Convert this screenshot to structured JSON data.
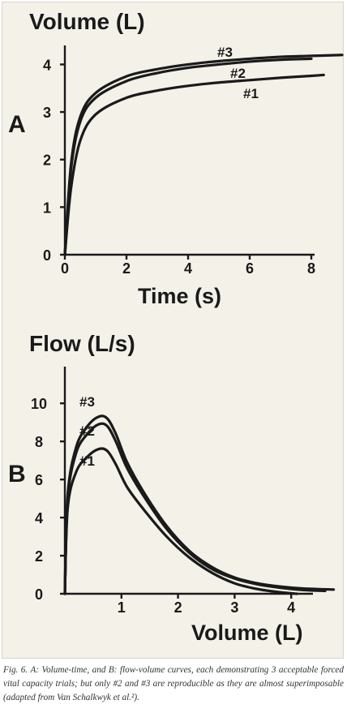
{
  "chart_data": [
    {
      "type": "line",
      "panel_label": "A",
      "ylabel": "Volume (L)",
      "xlabel": "Time (s)",
      "xlim": [
        0,
        9
      ],
      "ylim": [
        0,
        4.4
      ],
      "x_ticks": [
        0,
        2,
        4,
        6,
        8
      ],
      "y_ticks": [
        0,
        1,
        2,
        3,
        4
      ],
      "grid": false,
      "series": [
        {
          "name": "#1",
          "x": [
            0,
            0.2,
            0.5,
            1,
            2,
            3,
            4,
            5,
            6,
            7,
            8,
            8.4
          ],
          "y": [
            0,
            1.4,
            2.4,
            2.95,
            3.3,
            3.45,
            3.55,
            3.62,
            3.67,
            3.72,
            3.76,
            3.78
          ]
        },
        {
          "name": "#2",
          "x": [
            0,
            0.2,
            0.5,
            1,
            2,
            3,
            4,
            5,
            6,
            7,
            8
          ],
          "y": [
            0,
            1.8,
            2.8,
            3.3,
            3.65,
            3.82,
            3.93,
            4.0,
            4.06,
            4.1,
            4.12
          ]
        },
        {
          "name": "#3",
          "x": [
            0,
            0.2,
            0.5,
            1,
            2,
            3,
            4,
            5,
            6,
            7,
            8,
            9
          ],
          "y": [
            0,
            1.9,
            2.9,
            3.4,
            3.75,
            3.9,
            4.0,
            4.07,
            4.12,
            4.16,
            4.18,
            4.2
          ]
        }
      ]
    },
    {
      "type": "line",
      "panel_label": "B",
      "ylabel": "Flow (L/s)",
      "xlabel": "Volume (L)",
      "xlim": [
        0,
        4.8
      ],
      "ylim": [
        0,
        11.5
      ],
      "x_ticks": [
        1,
        2,
        3,
        4
      ],
      "y_ticks": [
        0,
        2,
        4,
        6,
        8,
        10
      ],
      "grid": false,
      "series": [
        {
          "name": "#1",
          "x": [
            0,
            0.05,
            0.2,
            0.4,
            0.6,
            0.75,
            0.9,
            1.1,
            1.4,
            1.8,
            2.2,
            2.6,
            3.0,
            3.4,
            3.8,
            4.1
          ],
          "y": [
            0,
            4.5,
            6.4,
            7.2,
            7.6,
            7.5,
            6.8,
            5.6,
            4.4,
            3.0,
            1.9,
            1.1,
            0.55,
            0.25,
            0.08,
            0
          ]
        },
        {
          "name": "#2",
          "x": [
            0,
            0.05,
            0.2,
            0.4,
            0.6,
            0.75,
            0.9,
            1.1,
            1.4,
            1.8,
            2.2,
            2.6,
            3.0,
            3.4,
            3.8,
            4.2,
            4.6
          ],
          "y": [
            0,
            5.0,
            7.4,
            8.4,
            8.9,
            8.8,
            8.0,
            6.6,
            5.1,
            3.4,
            2.15,
            1.3,
            0.8,
            0.5,
            0.32,
            0.2,
            0.15
          ]
        },
        {
          "name": "#3",
          "x": [
            0,
            0.05,
            0.2,
            0.4,
            0.6,
            0.75,
            0.9,
            1.1,
            1.4,
            1.8,
            2.2,
            2.6,
            3.0,
            3.4,
            3.8,
            4.2,
            4.75
          ],
          "y": [
            0,
            5.2,
            7.7,
            8.8,
            9.3,
            9.2,
            8.4,
            6.9,
            5.3,
            3.55,
            2.25,
            1.4,
            0.85,
            0.55,
            0.38,
            0.28,
            0.22
          ]
        }
      ]
    }
  ],
  "caption": "Fig. 6. A: Volume-time, and B: flow-volume curves, each demonstrating 3 acceptable forced vital capacity trials; but only #2 and #3 are reproducible as they are almost superimposable (adapted from Van Schalkwyk et al.²)."
}
